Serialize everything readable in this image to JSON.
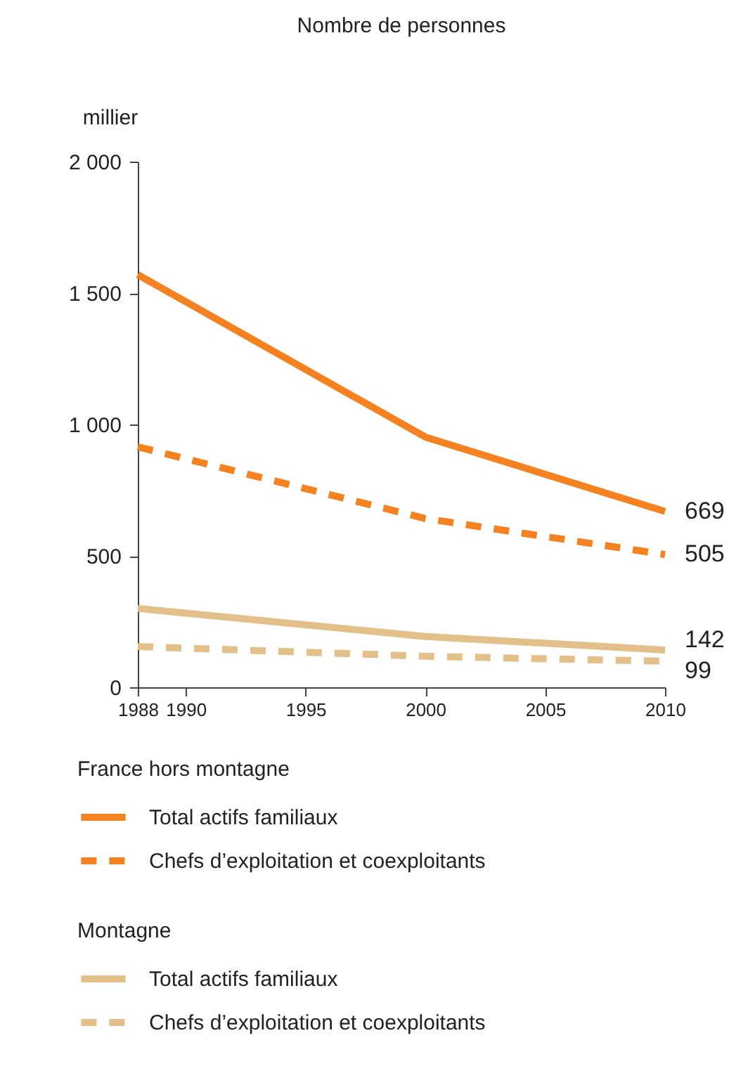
{
  "chart_data": {
    "type": "line",
    "title": "Nombre de personnes",
    "ylabel": "millier",
    "x": [
      1988,
      2000,
      2010
    ],
    "xlim": [
      1988,
      2010
    ],
    "xticks": [
      1988,
      1990,
      1995,
      2000,
      2005,
      2010
    ],
    "ylim": [
      0,
      2000
    ],
    "yticks": [
      0,
      500,
      {
        "value": 1000,
        "label": "1 000"
      },
      {
        "value": 1500,
        "label": "1 500"
      },
      {
        "value": 2000,
        "label": "2 000"
      }
    ],
    "legend": "bottom",
    "legend_title": [
      "France hors montagne",
      "Montagne"
    ],
    "series": [
      {
        "name": "Total actifs familiaux",
        "color": "#f58220",
        "line_style": "solid",
        "values": [
          1570,
          952,
          669
        ],
        "value_labels": [
          null,
          null,
          "669"
        ]
      },
      {
        "name": "Chefs d’exploitation et coexploitants",
        "color": "#f58220",
        "line_style": "dashed",
        "values": [
          915,
          642,
          505
        ],
        "value_labels": [
          null,
          null,
          "505"
        ]
      },
      {
        "name": "Total actifs familiaux",
        "color": "#e3c08a",
        "line_style": "solid",
        "values": [
          300,
          193,
          142
        ],
        "value_labels": [
          null,
          null,
          "142"
        ]
      },
      {
        "name": "Chefs d’exploitation et coexploitants",
        "color": "#e3c08a",
        "line_style": "dashed",
        "values": [
          155,
          118,
          99
        ],
        "value_labels": [
          null,
          null,
          "99"
        ]
      }
    ]
  }
}
